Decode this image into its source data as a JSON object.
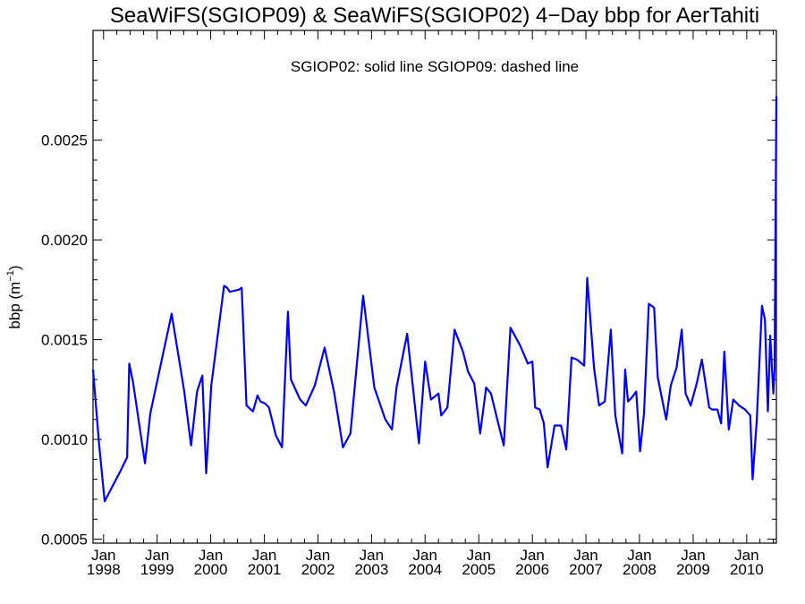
{
  "chart_data": {
    "type": "line",
    "title": "SeaWiFS(SGIOP09) & SeaWiFS(SGIOP02) 4−Day bbp for AerTahiti",
    "annotation": "SGIOP02: solid line   SGIOP09: dashed line",
    "ylabel": "bbp (m",
    "ylabel_sup": "−1",
    "ylabel_close": ")",
    "xlabel": "",
    "xlim": [
      "1997-10-21",
      "2010-07-22"
    ],
    "ylim": [
      0.00048,
      0.00305
    ],
    "y_ticks": [
      {
        "value": 0.0005,
        "label": "0.0005"
      },
      {
        "value": 0.001,
        "label": "0.0010"
      },
      {
        "value": 0.0015,
        "label": "0.0015"
      },
      {
        "value": 0.002,
        "label": "0.0020"
      },
      {
        "value": 0.0025,
        "label": "0.0025"
      }
    ],
    "x_ticks": [
      {
        "date": "1998-01-01",
        "month": "Jan",
        "year": "1998"
      },
      {
        "date": "1999-01-01",
        "month": "Jan",
        "year": "1999"
      },
      {
        "date": "2000-01-01",
        "month": "Jan",
        "year": "2000"
      },
      {
        "date": "2001-01-01",
        "month": "Jan",
        "year": "2001"
      },
      {
        "date": "2002-01-01",
        "month": "Jan",
        "year": "2002"
      },
      {
        "date": "2003-01-01",
        "month": "Jan",
        "year": "2003"
      },
      {
        "date": "2004-01-01",
        "month": "Jan",
        "year": "2004"
      },
      {
        "date": "2005-01-01",
        "month": "Jan",
        "year": "2005"
      },
      {
        "date": "2006-01-01",
        "month": "Jan",
        "year": "2006"
      },
      {
        "date": "2007-01-01",
        "month": "Jan",
        "year": "2007"
      },
      {
        "date": "2008-01-01",
        "month": "Jan",
        "year": "2008"
      },
      {
        "date": "2009-01-01",
        "month": "Jan",
        "year": "2009"
      },
      {
        "date": "2010-01-01",
        "month": "Jan",
        "year": "2010"
      }
    ],
    "series": [
      {
        "style": "solid",
        "color": "#0000ff",
        "points": [
          [
            "1997-10-21",
            0.00135
          ],
          [
            "1997-12-01",
            0.00098
          ],
          [
            "1998-01-08",
            0.00069
          ],
          [
            "1998-04-25",
            0.00084
          ],
          [
            "1998-06-10",
            0.00091
          ],
          [
            "1998-06-25",
            0.00138
          ],
          [
            "1998-07-20",
            0.00129
          ],
          [
            "1998-10-10",
            0.00088
          ],
          [
            "1998-11-15",
            0.00113
          ],
          [
            "1999-04-10",
            0.00163
          ],
          [
            "1999-07-05",
            0.00124
          ],
          [
            "1999-08-20",
            0.00097
          ],
          [
            "1999-09-30",
            0.00124
          ],
          [
            "1999-11-05",
            0.00132
          ],
          [
            "1999-12-01",
            0.00083
          ],
          [
            "2000-01-05",
            0.00127
          ],
          [
            "2000-04-01",
            0.00177
          ],
          [
            "2000-04-22",
            0.00176
          ],
          [
            "2000-05-10",
            0.00174
          ],
          [
            "2000-07-10",
            0.00175
          ],
          [
            "2000-07-30",
            0.00176
          ],
          [
            "2000-09-01",
            0.00117
          ],
          [
            "2000-10-15",
            0.00114
          ],
          [
            "2000-11-15",
            0.00122
          ],
          [
            "2000-12-05",
            0.00119
          ],
          [
            "2001-01-05",
            0.00118
          ],
          [
            "2001-02-01",
            0.00116
          ],
          [
            "2001-03-20",
            0.00102
          ],
          [
            "2001-05-01",
            0.00096
          ],
          [
            "2001-06-10",
            0.00164
          ],
          [
            "2001-07-01",
            0.0013
          ],
          [
            "2001-09-01",
            0.0012
          ],
          [
            "2001-10-10",
            0.00117
          ],
          [
            "2001-12-10",
            0.00127
          ],
          [
            "2002-02-15",
            0.00146
          ],
          [
            "2002-04-20",
            0.00124
          ],
          [
            "2002-06-20",
            0.00096
          ],
          [
            "2002-08-10",
            0.00103
          ],
          [
            "2002-11-05",
            0.00172
          ],
          [
            "2003-01-20",
            0.00126
          ],
          [
            "2003-04-05",
            0.0011
          ],
          [
            "2003-05-20",
            0.00105
          ],
          [
            "2003-06-20",
            0.00126
          ],
          [
            "2003-09-01",
            0.00153
          ],
          [
            "2003-11-20",
            0.00098
          ],
          [
            "2004-01-01",
            0.00139
          ],
          [
            "2004-02-10",
            0.0012
          ],
          [
            "2004-04-01",
            0.00123
          ],
          [
            "2004-04-20",
            0.00112
          ],
          [
            "2004-06-01",
            0.00116
          ],
          [
            "2004-07-20",
            0.00155
          ],
          [
            "2004-09-15",
            0.00144
          ],
          [
            "2004-10-20",
            0.00134
          ],
          [
            "2004-12-01",
            0.00128
          ],
          [
            "2005-01-10",
            0.00103
          ],
          [
            "2005-02-20",
            0.00126
          ],
          [
            "2005-03-25",
            0.00123
          ],
          [
            "2005-05-10",
            0.00109
          ],
          [
            "2005-06-20",
            0.00097
          ],
          [
            "2005-08-05",
            0.00156
          ],
          [
            "2005-10-10",
            0.00147
          ],
          [
            "2005-12-01",
            0.00138
          ],
          [
            "2006-01-01",
            0.00139
          ],
          [
            "2006-01-20",
            0.00116
          ],
          [
            "2006-02-20",
            0.00115
          ],
          [
            "2006-03-20",
            0.00108
          ],
          [
            "2006-04-15",
            0.00086
          ],
          [
            "2006-06-01",
            0.00107
          ],
          [
            "2006-07-15",
            0.00107
          ],
          [
            "2006-08-20",
            0.00095
          ],
          [
            "2006-09-25",
            0.00141
          ],
          [
            "2006-11-01",
            0.0014
          ],
          [
            "2006-12-20",
            0.00137
          ],
          [
            "2007-01-10",
            0.00181
          ],
          [
            "2007-02-25",
            0.00136
          ],
          [
            "2007-04-01",
            0.00117
          ],
          [
            "2007-05-10",
            0.00119
          ],
          [
            "2007-06-20",
            0.00155
          ],
          [
            "2007-07-20",
            0.00112
          ],
          [
            "2007-09-05",
            0.00093
          ],
          [
            "2007-09-25",
            0.00135
          ],
          [
            "2007-10-15",
            0.00119
          ],
          [
            "2007-11-10",
            0.00121
          ],
          [
            "2007-12-10",
            0.00124
          ],
          [
            "2008-01-05",
            0.00094
          ],
          [
            "2008-02-01",
            0.00113
          ],
          [
            "2008-03-05",
            0.00168
          ],
          [
            "2008-04-10",
            0.00166
          ],
          [
            "2008-05-05",
            0.00131
          ],
          [
            "2008-07-01",
            0.0011
          ],
          [
            "2008-08-01",
            0.00127
          ],
          [
            "2008-09-10",
            0.00136
          ],
          [
            "2008-10-15",
            0.00155
          ],
          [
            "2008-11-10",
            0.00123
          ],
          [
            "2008-12-15",
            0.00117
          ],
          [
            "2009-01-25",
            0.00128
          ],
          [
            "2009-03-01",
            0.0014
          ],
          [
            "2009-04-20",
            0.00116
          ],
          [
            "2009-05-10",
            0.00115
          ],
          [
            "2009-06-15",
            0.00115
          ],
          [
            "2009-07-10",
            0.00108
          ],
          [
            "2009-08-01",
            0.00144
          ],
          [
            "2009-09-01",
            0.00105
          ],
          [
            "2009-10-01",
            0.0012
          ],
          [
            "2009-11-10",
            0.00117
          ],
          [
            "2009-12-20",
            0.00115
          ],
          [
            "2010-01-25",
            0.00112
          ],
          [
            "2010-02-10",
            0.0008
          ],
          [
            "2010-03-10",
            0.00109
          ],
          [
            "2010-04-15",
            0.00167
          ],
          [
            "2010-05-05",
            0.0016
          ],
          [
            "2010-05-25",
            0.00114
          ],
          [
            "2010-06-10",
            0.00152
          ],
          [
            "2010-07-01",
            0.00123
          ],
          [
            "2010-07-10",
            0.00135
          ],
          [
            "2010-07-22",
            0.00272
          ]
        ]
      }
    ]
  }
}
